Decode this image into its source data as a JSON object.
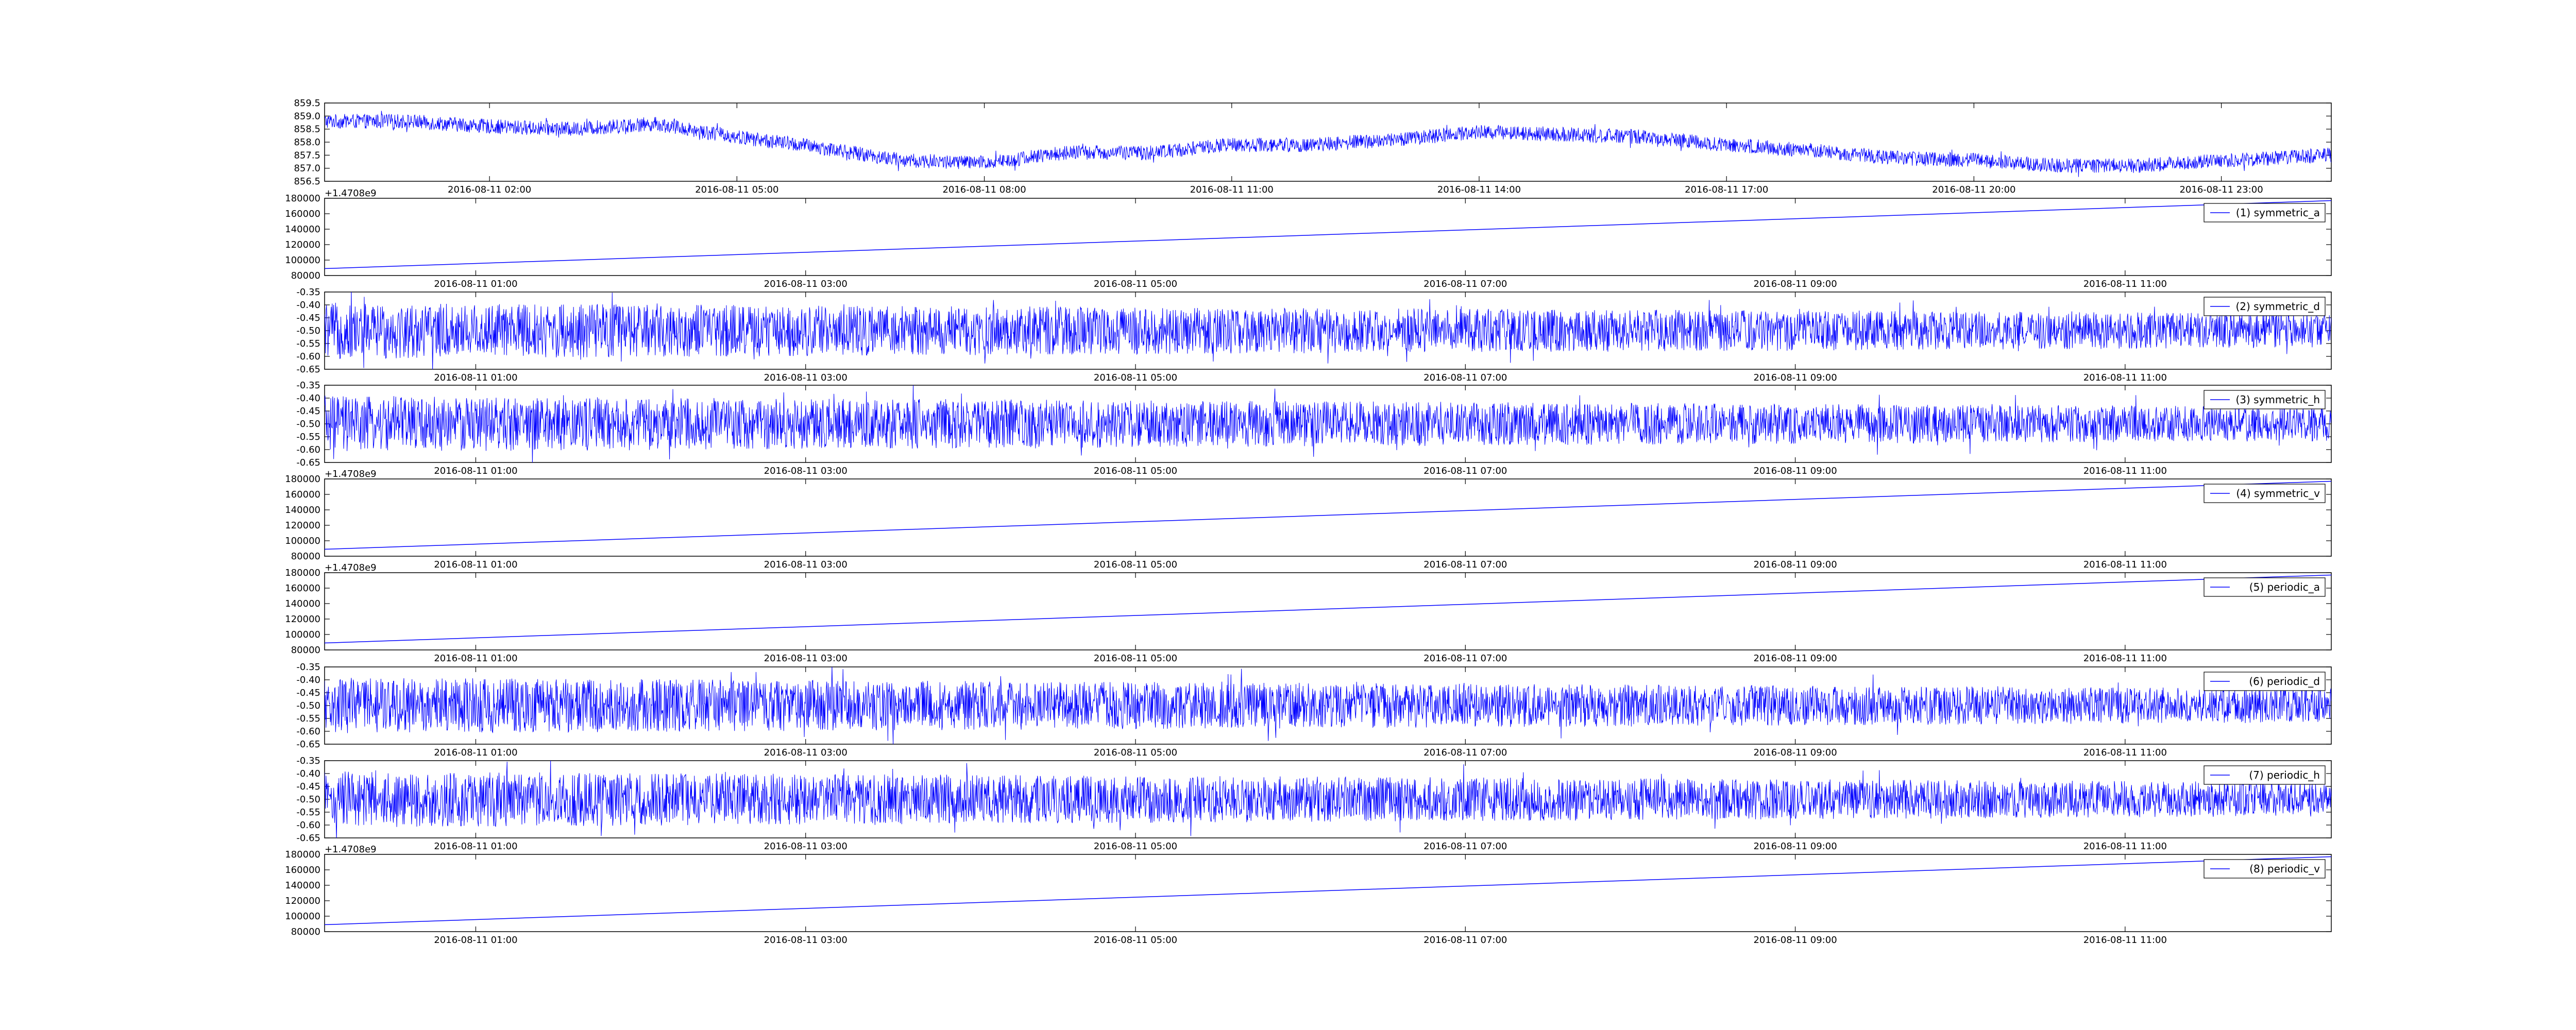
{
  "colors": {
    "line": "#0000ff",
    "axes": "#000000",
    "background": "#ffffff"
  },
  "chart_data": [
    {
      "type": "line",
      "ylim": [
        856.5,
        859.5
      ],
      "yticks": [
        "856.5",
        "857.0",
        "857.5",
        "858.0",
        "858.5",
        "859.0",
        "859.5"
      ],
      "xticks": [
        "2016-08-11 02:00",
        "2016-08-11 05:00",
        "2016-08-11 08:00",
        "2016-08-11 11:00",
        "2016-08-11 14:00",
        "2016-08-11 17:00",
        "2016-08-11 20:00",
        "2016-08-11 23:00"
      ],
      "x_range": [
        "2016-08-11 00:00",
        "2016-08-12 00:20"
      ],
      "noise": 0.28,
      "series": [
        {
          "x": [
            "2016-08-11 00:00",
            "2016-08-11 01:00",
            "2016-08-11 02:00",
            "2016-08-11 03:00",
            "2016-08-11 04:00",
            "2016-08-11 05:00",
            "2016-08-11 06:00",
            "2016-08-11 07:00",
            "2016-08-11 08:00",
            "2016-08-11 09:00",
            "2016-08-11 10:00",
            "2016-08-11 11:00",
            "2016-08-11 12:00",
            "2016-08-11 13:00",
            "2016-08-11 14:00",
            "2016-08-11 15:00",
            "2016-08-11 16:00",
            "2016-08-11 17:00",
            "2016-08-11 18:00",
            "2016-08-11 19:00",
            "2016-08-11 20:00",
            "2016-08-11 21:00",
            "2016-08-11 22:00",
            "2016-08-11 23:00",
            "2016-08-12 00:20"
          ],
          "values": [
            858.8,
            858.8,
            858.6,
            858.5,
            858.7,
            858.2,
            857.8,
            857.3,
            857.2,
            857.6,
            857.6,
            857.9,
            857.9,
            858.1,
            858.4,
            858.3,
            858.2,
            857.9,
            857.7,
            857.4,
            857.3,
            857.1,
            857.1,
            857.3,
            857.5
          ]
        }
      ]
    },
    {
      "type": "line",
      "offset_text": "+1.4708e9",
      "ylim": [
        80000,
        180000
      ],
      "yticks": [
        "80000",
        "100000",
        "120000",
        "140000",
        "160000",
        "180000"
      ],
      "xticks": [
        "2016-08-11 01:00",
        "2016-08-11 03:00",
        "2016-08-11 05:00",
        "2016-08-11 07:00",
        "2016-08-11 09:00",
        "2016-08-11 11:00"
      ],
      "x_range": [
        "2016-08-11 00:05",
        "2016-08-11 12:15"
      ],
      "legend": "top-right",
      "series": [
        {
          "name": "(1) symmetric_a",
          "x": [
            "2016-08-11 00:05",
            "2016-08-11 12:15"
          ],
          "values": [
            89000,
            177000
          ]
        }
      ]
    },
    {
      "type": "line",
      "ylim": [
        -0.65,
        -0.35
      ],
      "yticks": [
        "-0.65",
        "-0.60",
        "-0.55",
        "-0.50",
        "-0.45",
        "-0.40",
        "-0.35"
      ],
      "xticks": [
        "2016-08-11 01:00",
        "2016-08-11 03:00",
        "2016-08-11 05:00",
        "2016-08-11 07:00",
        "2016-08-11 09:00",
        "2016-08-11 11:00"
      ],
      "x_range": [
        "2016-08-11 00:05",
        "2016-08-11 12:15"
      ],
      "legend": "top-right",
      "noise": 0.095,
      "series": [
        {
          "name": "(2) symmetric_d",
          "x": [
            "2016-08-11 00:05",
            "2016-08-11 12:15"
          ],
          "values": [
            -0.5,
            -0.5
          ]
        }
      ]
    },
    {
      "type": "line",
      "ylim": [
        -0.65,
        -0.35
      ],
      "yticks": [
        "-0.65",
        "-0.60",
        "-0.55",
        "-0.50",
        "-0.45",
        "-0.40",
        "-0.35"
      ],
      "xticks": [
        "2016-08-11 01:00",
        "2016-08-11 03:00",
        "2016-08-11 05:00",
        "2016-08-11 07:00",
        "2016-08-11 09:00",
        "2016-08-11 11:00"
      ],
      "x_range": [
        "2016-08-11 00:05",
        "2016-08-11 12:15"
      ],
      "legend": "top-right",
      "noise": 0.095,
      "series": [
        {
          "name": "(3) symmetric_h",
          "x": [
            "2016-08-11 00:05",
            "2016-08-11 12:15"
          ],
          "values": [
            -0.5,
            -0.5
          ]
        }
      ]
    },
    {
      "type": "line",
      "offset_text": "+1.4708e9",
      "ylim": [
        80000,
        180000
      ],
      "yticks": [
        "80000",
        "100000",
        "120000",
        "140000",
        "160000",
        "180000"
      ],
      "xticks": [
        "2016-08-11 01:00",
        "2016-08-11 03:00",
        "2016-08-11 05:00",
        "2016-08-11 07:00",
        "2016-08-11 09:00",
        "2016-08-11 11:00"
      ],
      "x_range": [
        "2016-08-11 00:05",
        "2016-08-11 12:15"
      ],
      "legend": "top-right",
      "series": [
        {
          "name": "(4) symmetric_v",
          "x": [
            "2016-08-11 00:05",
            "2016-08-11 12:15"
          ],
          "values": [
            89000,
            177000
          ]
        }
      ]
    },
    {
      "type": "line",
      "offset_text": "+1.4708e9",
      "ylim": [
        80000,
        180000
      ],
      "yticks": [
        "80000",
        "100000",
        "120000",
        "140000",
        "160000",
        "180000"
      ],
      "xticks": [
        "2016-08-11 01:00",
        "2016-08-11 03:00",
        "2016-08-11 05:00",
        "2016-08-11 07:00",
        "2016-08-11 09:00",
        "2016-08-11 11:00"
      ],
      "x_range": [
        "2016-08-11 00:05",
        "2016-08-11 12:15"
      ],
      "legend": "top-right",
      "series": [
        {
          "name": "(5) periodic_a",
          "x": [
            "2016-08-11 00:05",
            "2016-08-11 12:15"
          ],
          "values": [
            89000,
            177000
          ]
        }
      ]
    },
    {
      "type": "line",
      "ylim": [
        -0.65,
        -0.35
      ],
      "yticks": [
        "-0.65",
        "-0.60",
        "-0.55",
        "-0.50",
        "-0.45",
        "-0.40",
        "-0.35"
      ],
      "xticks": [
        "2016-08-11 01:00",
        "2016-08-11 03:00",
        "2016-08-11 05:00",
        "2016-08-11 07:00",
        "2016-08-11 09:00",
        "2016-08-11 11:00"
      ],
      "x_range": [
        "2016-08-11 00:05",
        "2016-08-11 12:15"
      ],
      "legend": "top-right",
      "noise": 0.095,
      "series": [
        {
          "name": "(6) periodic_d",
          "x": [
            "2016-08-11 00:05",
            "2016-08-11 12:15"
          ],
          "values": [
            -0.5,
            -0.5
          ]
        }
      ]
    },
    {
      "type": "line",
      "ylim": [
        -0.65,
        -0.35
      ],
      "yticks": [
        "-0.65",
        "-0.60",
        "-0.55",
        "-0.50",
        "-0.45",
        "-0.40",
        "-0.35"
      ],
      "xticks": [
        "2016-08-11 01:00",
        "2016-08-11 03:00",
        "2016-08-11 05:00",
        "2016-08-11 07:00",
        "2016-08-11 09:00",
        "2016-08-11 11:00"
      ],
      "x_range": [
        "2016-08-11 00:05",
        "2016-08-11 12:15"
      ],
      "legend": "top-right",
      "noise": 0.095,
      "series": [
        {
          "name": "(7) periodic_h",
          "x": [
            "2016-08-11 00:05",
            "2016-08-11 12:15"
          ],
          "values": [
            -0.5,
            -0.5
          ]
        }
      ]
    },
    {
      "type": "line",
      "offset_text": "+1.4708e9",
      "ylim": [
        80000,
        180000
      ],
      "yticks": [
        "80000",
        "100000",
        "120000",
        "140000",
        "160000",
        "180000"
      ],
      "xticks": [
        "2016-08-11 01:00",
        "2016-08-11 03:00",
        "2016-08-11 05:00",
        "2016-08-11 07:00",
        "2016-08-11 09:00",
        "2016-08-11 11:00"
      ],
      "x_range": [
        "2016-08-11 00:05",
        "2016-08-11 12:15"
      ],
      "legend": "top-right",
      "series": [
        {
          "name": "(8) periodic_v",
          "x": [
            "2016-08-11 00:05",
            "2016-08-11 12:15"
          ],
          "values": [
            89000,
            177000
          ]
        }
      ]
    }
  ]
}
